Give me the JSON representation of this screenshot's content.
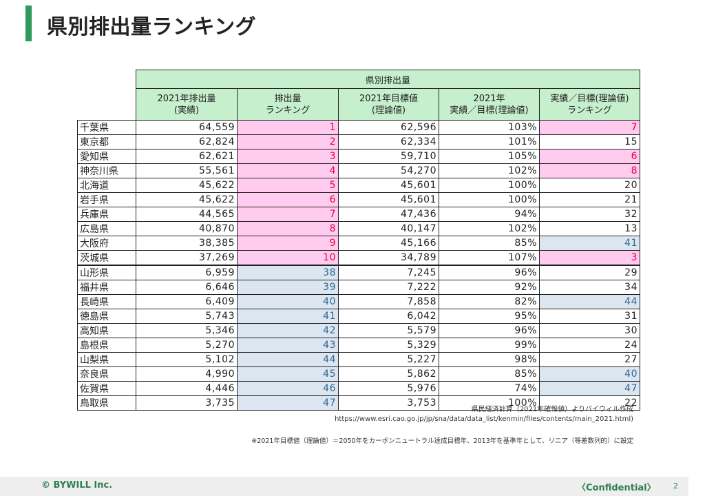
{
  "page": {
    "title": "県別排出量ランキング",
    "page_number": "2"
  },
  "table": {
    "group_header": "県別排出量",
    "columns": [
      [
        "2021年排出量",
        "(実績)"
      ],
      [
        "排出量",
        "ランキング"
      ],
      [
        "2021年目標値",
        "(理論値)"
      ],
      [
        "2021年",
        "実績／目標(理論値)"
      ],
      [
        "実績／目標(理論値)",
        "ランキング"
      ]
    ],
    "rows": [
      {
        "pref": "千葉県",
        "emission": "64,559",
        "rank": "1",
        "target": "62,596",
        "ratio": "103%",
        "ratio_rank": "7",
        "rank_hl": "pink",
        "ratio_hl": "pink"
      },
      {
        "pref": "東京都",
        "emission": "62,824",
        "rank": "2",
        "target": "62,334",
        "ratio": "101%",
        "ratio_rank": "15",
        "rank_hl": "pink",
        "ratio_hl": ""
      },
      {
        "pref": "愛知県",
        "emission": "62,621",
        "rank": "3",
        "target": "59,710",
        "ratio": "105%",
        "ratio_rank": "6",
        "rank_hl": "pink",
        "ratio_hl": "pink"
      },
      {
        "pref": "神奈川県",
        "emission": "55,561",
        "rank": "4",
        "target": "54,270",
        "ratio": "102%",
        "ratio_rank": "8",
        "rank_hl": "pink",
        "ratio_hl": "pink"
      },
      {
        "pref": "北海道",
        "emission": "45,622",
        "rank": "5",
        "target": "45,601",
        "ratio": "100%",
        "ratio_rank": "20",
        "rank_hl": "pink",
        "ratio_hl": ""
      },
      {
        "pref": "岩手県",
        "emission": "45,622",
        "rank": "6",
        "target": "45,601",
        "ratio": "100%",
        "ratio_rank": "21",
        "rank_hl": "pink",
        "ratio_hl": ""
      },
      {
        "pref": "兵庫県",
        "emission": "44,565",
        "rank": "7",
        "target": "47,436",
        "ratio": "94%",
        "ratio_rank": "32",
        "rank_hl": "pink",
        "ratio_hl": ""
      },
      {
        "pref": "広島県",
        "emission": "40,870",
        "rank": "8",
        "target": "40,147",
        "ratio": "102%",
        "ratio_rank": "13",
        "rank_hl": "pink",
        "ratio_hl": ""
      },
      {
        "pref": "大阪府",
        "emission": "38,385",
        "rank": "9",
        "target": "45,166",
        "ratio": "85%",
        "ratio_rank": "41",
        "rank_hl": "pink",
        "ratio_hl": "blue"
      },
      {
        "pref": "茨城県",
        "emission": "37,269",
        "rank": "10",
        "target": "34,789",
        "ratio": "107%",
        "ratio_rank": "3",
        "rank_hl": "pink",
        "ratio_hl": "pink"
      },
      {
        "pref": "山形県",
        "emission": "6,959",
        "rank": "38",
        "target": "7,245",
        "ratio": "96%",
        "ratio_rank": "29",
        "rank_hl": "blue",
        "ratio_hl": ""
      },
      {
        "pref": "福井県",
        "emission": "6,646",
        "rank": "39",
        "target": "7,222",
        "ratio": "92%",
        "ratio_rank": "34",
        "rank_hl": "blue",
        "ratio_hl": ""
      },
      {
        "pref": "長崎県",
        "emission": "6,409",
        "rank": "40",
        "target": "7,858",
        "ratio": "82%",
        "ratio_rank": "44",
        "rank_hl": "blue",
        "ratio_hl": "blue"
      },
      {
        "pref": "徳島県",
        "emission": "5,743",
        "rank": "41",
        "target": "6,042",
        "ratio": "95%",
        "ratio_rank": "31",
        "rank_hl": "blue",
        "ratio_hl": ""
      },
      {
        "pref": "高知県",
        "emission": "5,346",
        "rank": "42",
        "target": "5,579",
        "ratio": "96%",
        "ratio_rank": "30",
        "rank_hl": "blue",
        "ratio_hl": ""
      },
      {
        "pref": "島根県",
        "emission": "5,270",
        "rank": "43",
        "target": "5,329",
        "ratio": "99%",
        "ratio_rank": "24",
        "rank_hl": "blue",
        "ratio_hl": ""
      },
      {
        "pref": "山梨県",
        "emission": "5,102",
        "rank": "44",
        "target": "5,227",
        "ratio": "98%",
        "ratio_rank": "27",
        "rank_hl": "blue",
        "ratio_hl": ""
      },
      {
        "pref": "奈良県",
        "emission": "4,990",
        "rank": "45",
        "target": "5,862",
        "ratio": "85%",
        "ratio_rank": "40",
        "rank_hl": "blue",
        "ratio_hl": "blue"
      },
      {
        "pref": "佐賀県",
        "emission": "4,446",
        "rank": "46",
        "target": "5,976",
        "ratio": "74%",
        "ratio_rank": "47",
        "rank_hl": "blue",
        "ratio_hl": "blue"
      },
      {
        "pref": "鳥取県",
        "emission": "3,735",
        "rank": "47",
        "target": "3,753",
        "ratio": "100%",
        "ratio_rank": "22",
        "rank_hl": "blue",
        "ratio_hl": ""
      }
    ]
  },
  "source": {
    "line1": "県民経済計算（2021年確報値）よりバイウィル作成",
    "line2": "https://www.esri.cao.go.jp/jp/sna/data/data_list/kenmin/files/contents/main_2021.html)"
  },
  "note": "※2021年目標値（理論値）＝2050年をカーボンニュートラル達成目標年、2013年を基準年として、リニア（等差数列的）に設定",
  "footer": {
    "copyright": "© BYWILL Inc.",
    "confidential": "〈Confidential〉"
  },
  "colors": {
    "accent_green": "#2e9b5a",
    "header_green": "#c6efce",
    "highlight_pink": "#ffccf0",
    "highlight_blue": "#dce6f1",
    "rank_red": "#e8003a",
    "rank_blue": "#2f6690"
  }
}
